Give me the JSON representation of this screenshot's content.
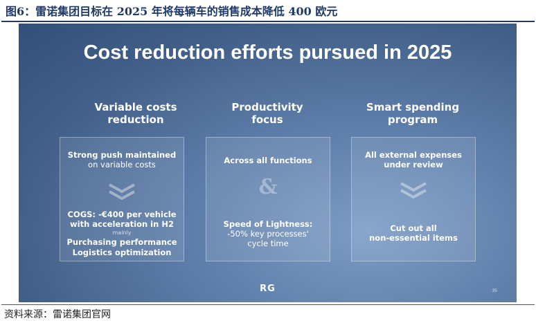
{
  "figure": {
    "title": "图6：雷诺集团目标在 2025 年将每辆车的销售成本降低 400 欧元",
    "source": "资料来源：雷诺集团官网"
  },
  "slide": {
    "title": "Cost reduction efforts pursued in 2025",
    "logo_text": "RG",
    "page_number": "35",
    "columns": [
      {
        "heading": [
          "Variable costs",
          "reduction"
        ],
        "card": {
          "line1": "Strong push maintained",
          "line2": "on variable costs",
          "line3": "COGS: -€400 per vehicle",
          "line4": "with acceleration in H2",
          "line5": "mainly",
          "line6": "Purchasing performance",
          "line7": "Logistics optimization"
        }
      },
      {
        "heading": [
          "Productivity",
          "focus"
        ],
        "card": {
          "line1": "Across all functions",
          "ampersand": "&",
          "line2": "Speed of Lightness:",
          "line3": "-50% key processes'",
          "line4": "cycle time"
        }
      },
      {
        "heading": [
          "Smart spending",
          "program"
        ],
        "card": {
          "line1": "All external expenses",
          "line2": "under review",
          "line3": "Cut out all",
          "line4": "non-essential items"
        }
      }
    ]
  }
}
